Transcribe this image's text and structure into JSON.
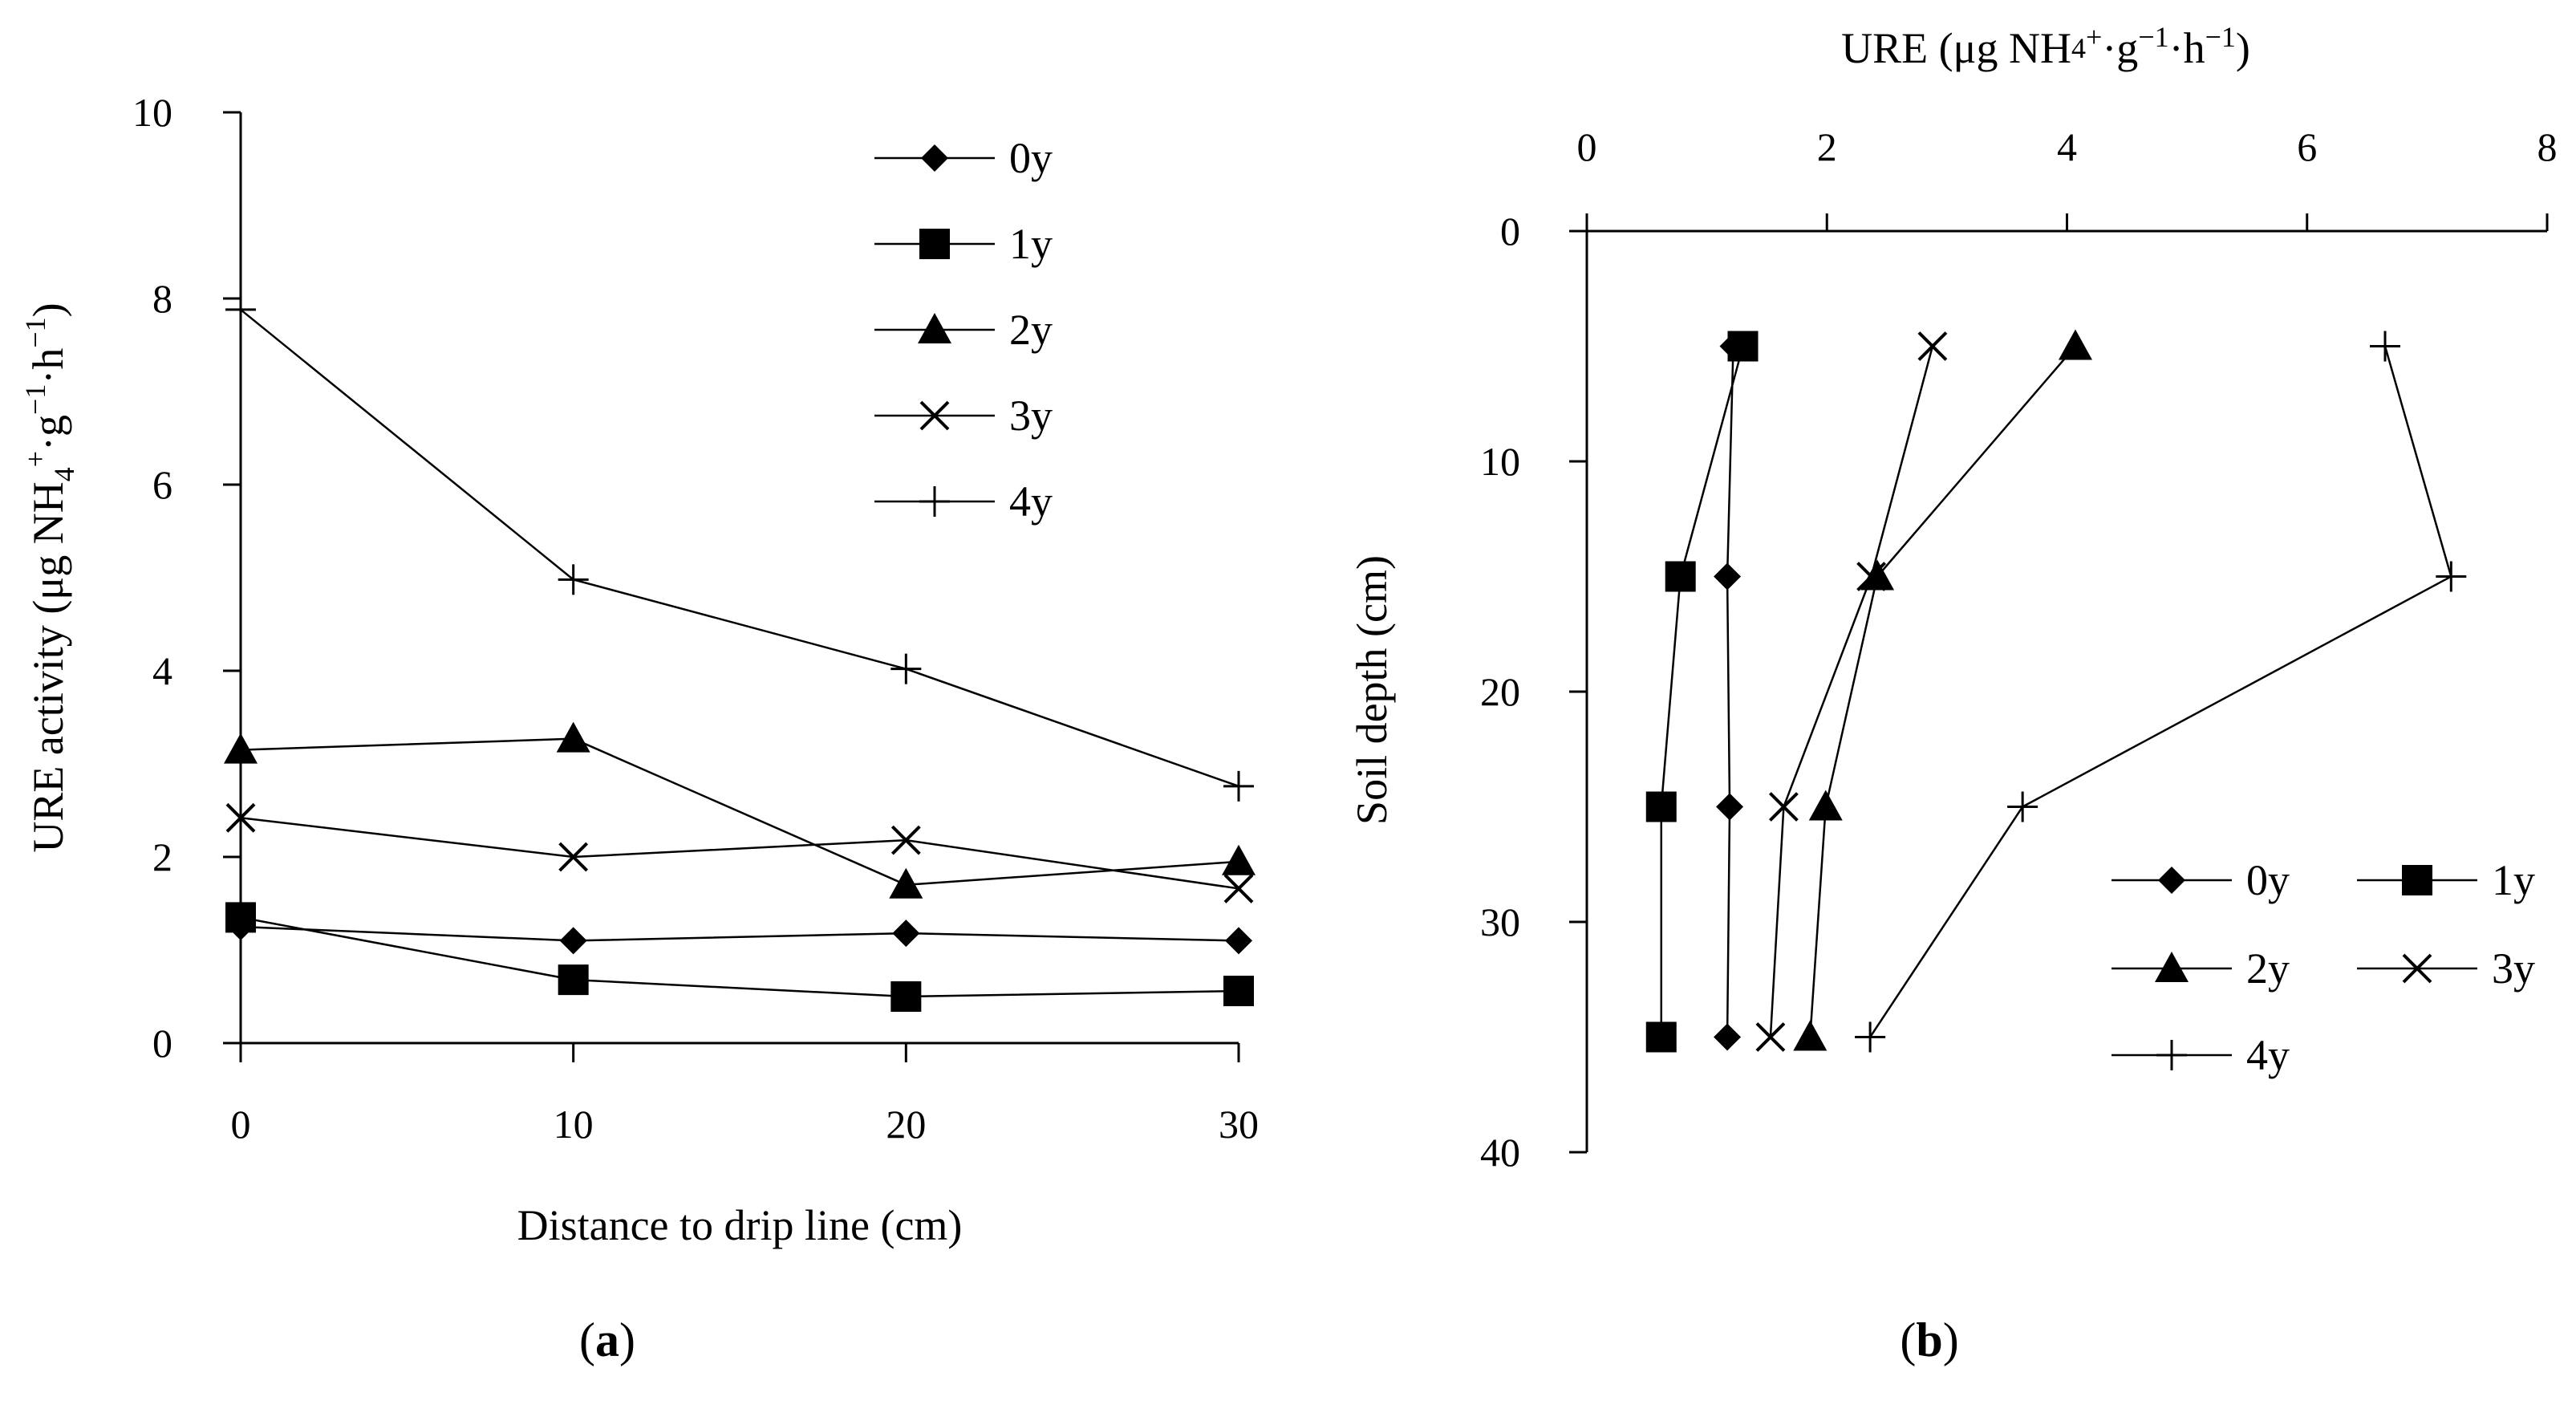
{
  "chart_data": [
    {
      "type": "line",
      "panel_label": "(a)",
      "panel_letter": "a",
      "xlabel": "Distance to drip line (cm)",
      "ylabel_parts": [
        "URE activity (μg NH",
        "4",
        "+",
        "·g",
        "−1",
        "·h",
        "−1",
        ")"
      ],
      "x": [
        0,
        10,
        20,
        30
      ],
      "xlim": [
        0,
        30
      ],
      "ylim": [
        0,
        10
      ],
      "xticks": [
        0,
        10,
        20,
        30
      ],
      "yticks": [
        0,
        2,
        4,
        6,
        8,
        10
      ],
      "legend_position": "top-right",
      "series": [
        {
          "name": "0y",
          "marker": "diamond",
          "values": [
            1.25,
            1.1,
            1.18,
            1.1
          ]
        },
        {
          "name": "1y",
          "marker": "square",
          "values": [
            1.35,
            0.68,
            0.5,
            0.56
          ]
        },
        {
          "name": "2y",
          "marker": "triangle",
          "values": [
            3.15,
            3.27,
            1.7,
            1.95
          ]
        },
        {
          "name": "3y",
          "marker": "cross",
          "values": [
            2.42,
            2.0,
            2.18,
            1.66
          ]
        },
        {
          "name": "4y",
          "marker": "plus",
          "values": [
            7.88,
            4.98,
            4.02,
            2.76
          ]
        }
      ]
    },
    {
      "type": "line",
      "panel_label": "(b)",
      "panel_letter": "b",
      "xlabel_parts": [
        "URE (μg NH",
        "4",
        "+",
        "·g",
        "−1",
        "·h",
        "−1",
        ")"
      ],
      "ylabel": "Soil depth (cm)",
      "xlim": [
        0,
        8
      ],
      "ylim": [
        0,
        40
      ],
      "y_inverted": true,
      "x_axis_position": "top",
      "xticks": [
        0,
        2,
        4,
        6,
        8
      ],
      "yticks": [
        0,
        10,
        20,
        30,
        40
      ],
      "depth": [
        5,
        15,
        25,
        35
      ],
      "legend_position": "bottom-right",
      "series": [
        {
          "name": "0y",
          "marker": "diamond",
          "values": [
            1.22,
            1.17,
            1.19,
            1.17
          ]
        },
        {
          "name": "1y",
          "marker": "square",
          "values": [
            1.3,
            0.78,
            0.62,
            0.62
          ]
        },
        {
          "name": "2y",
          "marker": "triangle",
          "values": [
            4.07,
            2.42,
            1.99,
            1.86
          ]
        },
        {
          "name": "3y",
          "marker": "cross",
          "values": [
            2.88,
            2.37,
            1.64,
            1.53
          ]
        },
        {
          "name": "4y",
          "marker": "plus",
          "values": [
            6.65,
            7.2,
            3.63,
            2.36
          ]
        }
      ]
    }
  ]
}
